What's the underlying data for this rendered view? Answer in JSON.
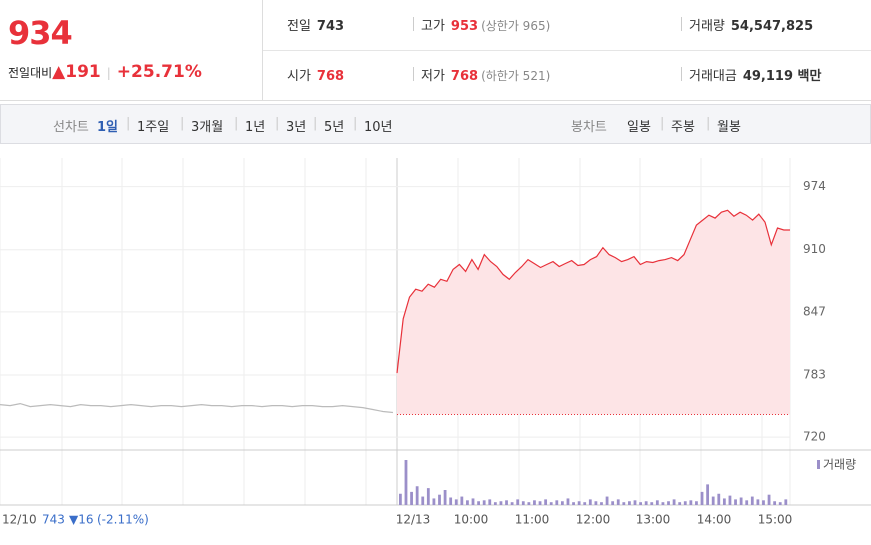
{
  "header": {
    "price": "934",
    "change_label": "전일대비",
    "arrow": "▲",
    "change": "191",
    "rate": "+25.71%",
    "items": [
      {
        "label": "전일",
        "value": "743"
      },
      {
        "label": "고가",
        "value": "953",
        "sub": "(상한가 965)"
      },
      {
        "label": "거래량",
        "value": "54,547,825"
      },
      {
        "label": "시가",
        "value": "768"
      },
      {
        "label": "저가",
        "value": "768",
        "sub": "(하한가 521)"
      },
      {
        "label": "거래대금",
        "value": "49,119 백만"
      }
    ]
  },
  "tabs": {
    "line_label": "선차트",
    "line": [
      "1일",
      "1주일",
      "3개월",
      "1년",
      "3년",
      "5년",
      "10년"
    ],
    "candle_label": "봉차트",
    "candle": [
      "일봉",
      "주봉",
      "월봉"
    ]
  },
  "footer": {
    "date": "12/10",
    "close": "743",
    "change": "▼16",
    "rate": "(-2.11%)"
  },
  "chart_data": {
    "type": "line",
    "ylim": [
      707,
      1006
    ],
    "yticks": [
      720,
      783,
      847,
      910,
      974
    ],
    "prev_close": 743,
    "x_labels": [
      "12/13",
      "10:00",
      "11:00",
      "12:00",
      "13:00",
      "14:00",
      "15:00"
    ],
    "series": [
      {
        "color": "#bbbbbb",
        "values": [
          753,
          752,
          754,
          751,
          752,
          753,
          752,
          751,
          753,
          752,
          752,
          751,
          752,
          753,
          752,
          751,
          752,
          752,
          751,
          752,
          753,
          752,
          752,
          751,
          752,
          752,
          751,
          752,
          752,
          751,
          752,
          752,
          751,
          751,
          752,
          751,
          750,
          748,
          746,
          745
        ]
      },
      {
        "color": "#e8313a",
        "values": [
          785,
          840,
          862,
          870,
          868,
          875,
          872,
          880,
          878,
          890,
          895,
          888,
          900,
          890,
          905,
          898,
          893,
          885,
          880,
          887,
          893,
          900,
          896,
          892,
          895,
          898,
          893,
          896,
          899,
          894,
          895,
          900,
          903,
          912,
          905,
          902,
          898,
          900,
          903,
          895,
          898,
          897,
          899,
          900,
          902,
          899,
          905,
          920,
          935,
          940,
          945,
          942,
          948,
          950,
          944,
          948,
          945,
          940,
          946,
          938,
          915,
          932,
          930,
          930
        ]
      }
    ],
    "volume_label": "거래량",
    "volume_color": "#9b8fc9",
    "volume": [
      12,
      48,
      14,
      20,
      9,
      18,
      7,
      11,
      16,
      8,
      6,
      9,
      5,
      7,
      4,
      5,
      6,
      3,
      4,
      5,
      3,
      6,
      4,
      3,
      5,
      4,
      6,
      3,
      5,
      4,
      7,
      3,
      4,
      3,
      6,
      4,
      3,
      9,
      4,
      6,
      3,
      4,
      5,
      3,
      4,
      3,
      5,
      3,
      4,
      6,
      3,
      4,
      5,
      4,
      14,
      22,
      9,
      12,
      7,
      10,
      6,
      8,
      5,
      9,
      6,
      5,
      11,
      4,
      3,
      6
    ]
  }
}
